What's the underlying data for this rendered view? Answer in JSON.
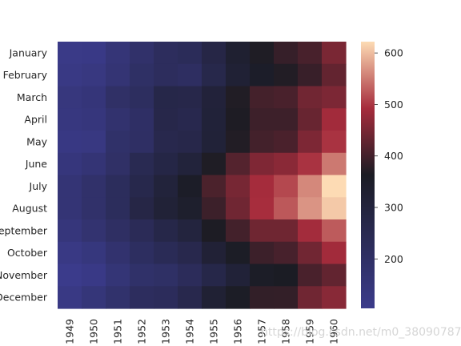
{
  "chart_data": {
    "type": "heatmap",
    "title": "",
    "xlabel": "",
    "ylabel": "",
    "x": [
      "1949",
      "1950",
      "1951",
      "1952",
      "1953",
      "1954",
      "1955",
      "1956",
      "1957",
      "1958",
      "1959",
      "1960"
    ],
    "y": [
      "January",
      "February",
      "March",
      "April",
      "May",
      "June",
      "July",
      "August",
      "September",
      "October",
      "November",
      "December"
    ],
    "values": [
      [
        112,
        115,
        145,
        171,
        196,
        204,
        242,
        284,
        315,
        340,
        360,
        417
      ],
      [
        118,
        126,
        150,
        180,
        196,
        188,
        233,
        277,
        301,
        318,
        342,
        391
      ],
      [
        132,
        141,
        178,
        193,
        236,
        235,
        267,
        317,
        356,
        362,
        406,
        419
      ],
      [
        129,
        135,
        163,
        181,
        235,
        227,
        269,
        313,
        348,
        348,
        396,
        461
      ],
      [
        121,
        125,
        172,
        183,
        229,
        234,
        270,
        318,
        355,
        363,
        420,
        472
      ],
      [
        135,
        149,
        178,
        218,
        243,
        264,
        315,
        374,
        422,
        435,
        472,
        535
      ],
      [
        148,
        170,
        199,
        230,
        264,
        302,
        364,
        413,
        465,
        491,
        548,
        622
      ],
      [
        148,
        170,
        199,
        242,
        272,
        293,
        347,
        405,
        467,
        505,
        559,
        606
      ],
      [
        136,
        158,
        184,
        209,
        237,
        259,
        312,
        355,
        404,
        404,
        463,
        508
      ],
      [
        119,
        133,
        162,
        191,
        211,
        229,
        274,
        306,
        347,
        359,
        407,
        461
      ],
      [
        104,
        114,
        146,
        172,
        180,
        203,
        237,
        271,
        305,
        310,
        362,
        390
      ],
      [
        118,
        140,
        166,
        194,
        201,
        229,
        278,
        306,
        336,
        337,
        405,
        432
      ]
    ],
    "colorbar": {
      "range": [
        104,
        622
      ],
      "ticks": [
        "200",
        "300",
        "400",
        "500",
        "600"
      ],
      "colors": [
        "#3b3b8b",
        "#1b1c24",
        "#a62c3c",
        "#fddbb4"
      ]
    }
  },
  "watermark": "https://blog.csdn.net/m0_38090787"
}
